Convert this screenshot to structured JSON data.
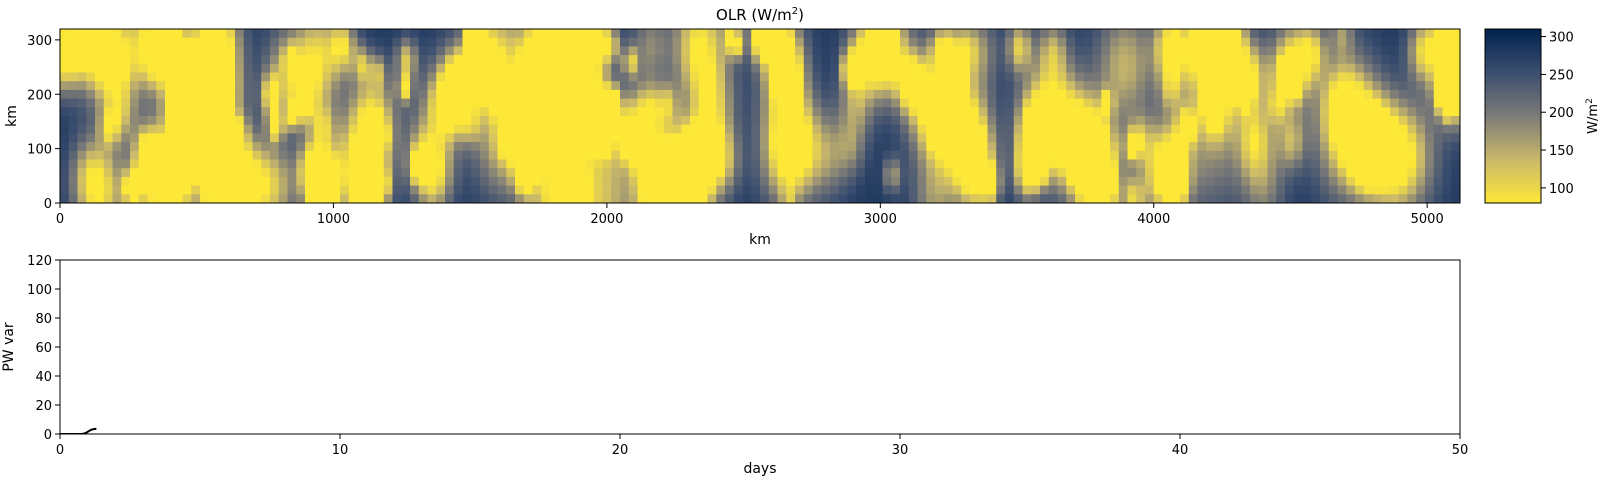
{
  "chart_data": [
    {
      "type": "heatmap",
      "title": "OLR (W/m2)",
      "title_parts": {
        "base": "OLR (W/m",
        "sup": "2",
        "tail": ")"
      },
      "xlabel": "km",
      "ylabel": "km",
      "xlim": [
        0,
        5120
      ],
      "ylim": [
        0,
        320
      ],
      "xticks": [
        "0",
        "1000",
        "2000",
        "3000",
        "4000",
        "5000"
      ],
      "yticks": [
        "0",
        "100",
        "200",
        "300"
      ],
      "colorbar": {
        "label": "W/m2",
        "label_parts": {
          "base": "W/m",
          "sup": "2"
        },
        "range": [
          80,
          310
        ],
        "ticks": [
          "100",
          "150",
          "200",
          "250",
          "300"
        ],
        "colormap": "cividis_r",
        "color_low": "#fde838",
        "color_mid": "#7c7b78",
        "color_high": "#00224e"
      },
      "grid": false
    },
    {
      "type": "line",
      "title": "",
      "xlabel": "days",
      "ylabel": "PW var",
      "xlim": [
        0,
        50
      ],
      "ylim": [
        0,
        120
      ],
      "xticks": [
        "0",
        "10",
        "20",
        "30",
        "40",
        "50"
      ],
      "yticks": [
        "0",
        "20",
        "40",
        "60",
        "80",
        "100",
        "120"
      ],
      "series": [
        {
          "color": "#000000",
          "x": [
            0,
            0.2,
            0.4,
            0.6,
            0.8,
            0.9,
            1.0,
            1.1,
            1.2,
            1.3
          ],
          "y": [
            0,
            0,
            0,
            0,
            0.1,
            0.5,
            1.6,
            2.8,
            3.4,
            3.6
          ]
        }
      ],
      "grid": false
    }
  ]
}
